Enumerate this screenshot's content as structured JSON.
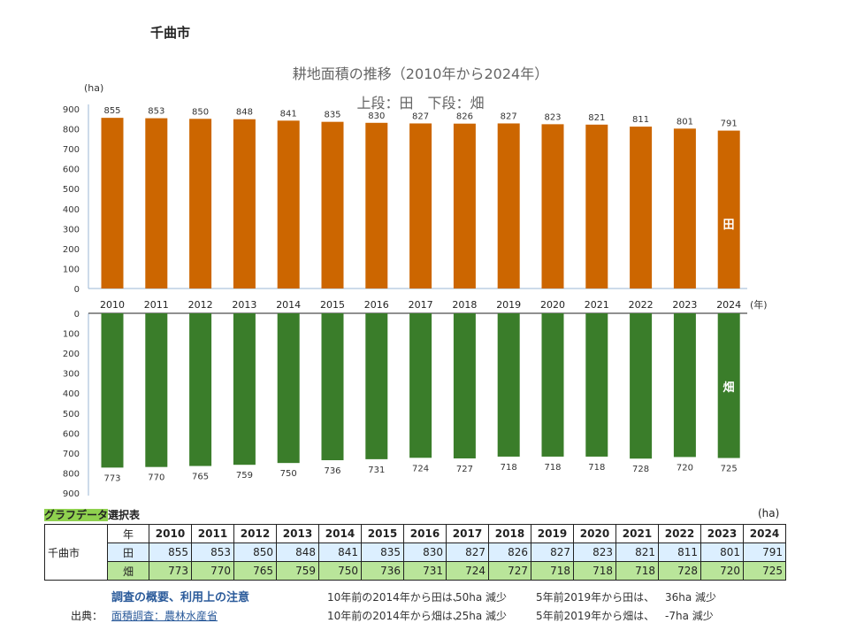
{
  "city": "千曲市",
  "chart_data": {
    "type": "bar",
    "title": "耕地面積の推移（2010年から2024年）",
    "subtitle": "上段：田　下段：畑",
    "ylabel": "(ha)",
    "xlabel": "(年)",
    "ylim": [
      0,
      900
    ],
    "yticks": [
      0,
      100,
      200,
      300,
      400,
      500,
      600,
      700,
      800,
      900
    ],
    "categories": [
      "2010",
      "2011",
      "2012",
      "2013",
      "2014",
      "2015",
      "2016",
      "2017",
      "2018",
      "2019",
      "2020",
      "2021",
      "2022",
      "2023",
      "2024"
    ],
    "series": [
      {
        "name": "田",
        "color": "#cc6600",
        "values": [
          855,
          853,
          850,
          848,
          841,
          835,
          830,
          827,
          826,
          827,
          823,
          821,
          811,
          801,
          791
        ]
      },
      {
        "name": "畑",
        "color": "#3a7d2a",
        "values": [
          773,
          770,
          765,
          759,
          750,
          736,
          731,
          724,
          727,
          718,
          718,
          718,
          728,
          720,
          725
        ]
      }
    ]
  },
  "table": {
    "title_highlight": "グラフデータ",
    "title_rest": "選択表",
    "unit": "(ha)",
    "region": "千曲市",
    "year_header": "年",
    "ta_label": "田",
    "hata_label": "畑"
  },
  "notes": {
    "link1": "調査の概要、利用上の注意",
    "source_label": "出典：",
    "link2": "面積調査：農林水産省",
    "line1a": "10年前の2014年から田は、",
    "line1b": "50ha 減少",
    "line1c": "5年前2019年から田は、",
    "line1d": "36ha 減少",
    "line2a": "10年前の2014年から畑は、",
    "line2b": "25ha 減少",
    "line2c": "5年前2019年から畑は、",
    "line2d": "-7ha 減少"
  }
}
